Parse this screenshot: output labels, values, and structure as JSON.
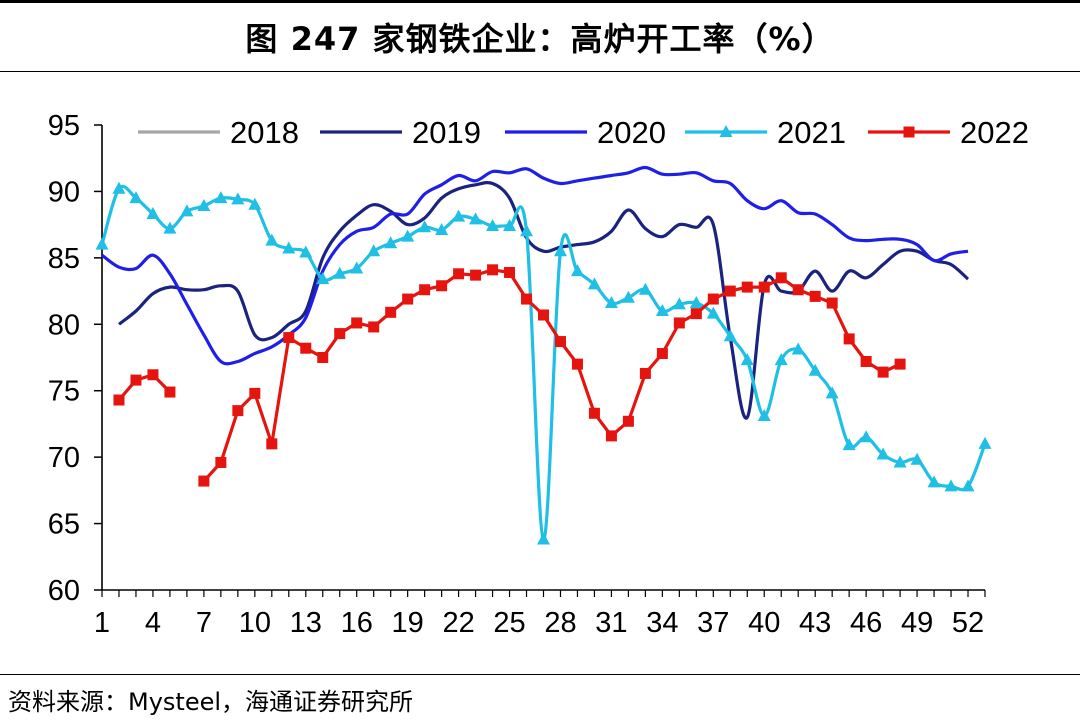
{
  "title": "图 247 家钢铁企业：高炉开工率（%）",
  "source": "资料来源：Mysteel，海通证券研究所",
  "chart_data": {
    "type": "line",
    "title": "图 247 家钢铁企业：高炉开工率（%）",
    "xlabel": "",
    "ylabel": "",
    "xlim": [
      1,
      53
    ],
    "ylim": [
      60,
      95
    ],
    "xticks": [
      1,
      4,
      7,
      10,
      13,
      16,
      19,
      22,
      25,
      28,
      31,
      34,
      37,
      40,
      43,
      46,
      49,
      52
    ],
    "yticks": [
      60,
      65,
      70,
      75,
      80,
      85,
      90,
      95
    ],
    "legend_position": "top",
    "grid": false,
    "series": [
      {
        "name": "2018",
        "color": "#a6a6a6",
        "marker": "none",
        "x": [],
        "values": []
      },
      {
        "name": "2019",
        "color": "#1a237e",
        "marker": "none",
        "x": [
          2,
          3,
          4,
          5,
          6,
          7,
          8,
          9,
          10,
          11,
          12,
          13,
          14,
          15,
          16,
          17,
          18,
          19,
          20,
          21,
          22,
          23,
          24,
          25,
          26,
          27,
          28,
          29,
          30,
          31,
          32,
          33,
          34,
          35,
          36,
          37,
          38,
          39,
          40,
          41,
          42,
          43,
          44,
          45,
          46,
          47,
          48,
          49,
          50,
          51,
          52
        ],
        "values": [
          80,
          81,
          82.3,
          82.8,
          82.6,
          82.6,
          82.9,
          82.5,
          79.2,
          79,
          80,
          81,
          85,
          87,
          88.2,
          89,
          88.5,
          87.5,
          88,
          89.5,
          90.2,
          90.5,
          90.6,
          89.5,
          86.5,
          85.5,
          85.8,
          86,
          86.2,
          87,
          88.6,
          87.2,
          86.6,
          87.5,
          87.3,
          87.5,
          79,
          73,
          83,
          82.5,
          82.5,
          84,
          82.5,
          84,
          83.5,
          84.5,
          85.5,
          85.5,
          84.8,
          84.5,
          83.4
        ]
      },
      {
        "name": "2020",
        "color": "#1f1fe6",
        "marker": "none",
        "x": [
          1,
          2,
          3,
          4,
          5,
          6,
          7,
          8,
          9,
          10,
          11,
          12,
          13,
          14,
          15,
          16,
          17,
          18,
          19,
          20,
          21,
          22,
          23,
          24,
          25,
          26,
          27,
          28,
          29,
          30,
          31,
          32,
          33,
          34,
          35,
          36,
          37,
          38,
          39,
          40,
          41,
          42,
          43,
          44,
          45,
          46,
          47,
          48,
          49,
          50,
          51,
          52
        ],
        "values": [
          85.2,
          84.3,
          84.2,
          85.2,
          83.8,
          81.5,
          79.2,
          77.2,
          77.2,
          77.8,
          78.3,
          79.2,
          80.5,
          84,
          86,
          87,
          87.3,
          88.3,
          88.3,
          89.8,
          90.5,
          91.2,
          90.8,
          91.5,
          91.4,
          91.7,
          91,
          90.6,
          90.8,
          91,
          91.2,
          91.4,
          91.8,
          91.3,
          91.3,
          91.4,
          90.8,
          90.6,
          89.3,
          88.7,
          89.3,
          88.4,
          88.3,
          87.5,
          86.5,
          86.3,
          86.4,
          86.4,
          86,
          84.8,
          85.3,
          85.5
        ]
      },
      {
        "name": "2021",
        "color": "#1fbfe6",
        "marker": "triangle",
        "x": [
          1,
          2,
          3,
          4,
          5,
          6,
          7,
          8,
          9,
          10,
          11,
          12,
          13,
          14,
          15,
          16,
          17,
          18,
          19,
          20,
          21,
          22,
          23,
          24,
          25,
          26,
          27,
          28,
          29,
          30,
          31,
          32,
          33,
          34,
          35,
          36,
          37,
          38,
          39,
          40,
          41,
          42,
          43,
          44,
          45,
          46,
          47,
          48,
          49,
          50,
          51,
          52,
          53
        ],
        "values": [
          86,
          90.2,
          89.5,
          88.3,
          87.2,
          88.5,
          88.9,
          89.5,
          89.4,
          89,
          86.3,
          85.7,
          85.4,
          83.4,
          83.8,
          84.2,
          85.5,
          86.1,
          86.6,
          87.3,
          87.1,
          88.1,
          87.9,
          87.4,
          87.4,
          87,
          63.8,
          85.5,
          84,
          83,
          81.6,
          82,
          82.6,
          81,
          81.5,
          81.6,
          80.8,
          79.1,
          77.3,
          73.1,
          77.3,
          78.1,
          76.5,
          74.8,
          70.9,
          71.5,
          70.2,
          69.6,
          69.8,
          68.1,
          67.8,
          67.8,
          71
        ]
      },
      {
        "name": "2022",
        "color": "#e6140f",
        "marker": "square",
        "x": [
          2,
          3,
          4,
          5,
          6,
          7,
          8,
          9,
          10,
          11,
          12,
          13,
          14,
          15,
          16,
          17,
          18,
          19,
          20,
          21,
          22,
          23,
          24,
          25,
          26,
          27,
          28,
          29,
          30,
          31,
          32,
          33,
          34,
          35,
          36,
          37,
          38,
          39,
          40,
          41,
          42,
          43,
          44,
          45,
          46,
          47,
          48
        ],
        "values": [
          74.3,
          75.8,
          76.2,
          74.9,
          null,
          68.2,
          69.6,
          73.5,
          74.8,
          71,
          79,
          78.2,
          77.5,
          79.3,
          80.1,
          79.8,
          80.9,
          81.9,
          82.6,
          82.9,
          83.8,
          83.7,
          84.1,
          83.9,
          81.9,
          80.7,
          78.7,
          77,
          73.3,
          71.6,
          72.7,
          76.3,
          77.8,
          80.1,
          80.8,
          81.9,
          82.5,
          82.8,
          82.8,
          83.5,
          82.6,
          82.1,
          81.6,
          78.9,
          77.2,
          76.4,
          77
        ]
      }
    ]
  }
}
